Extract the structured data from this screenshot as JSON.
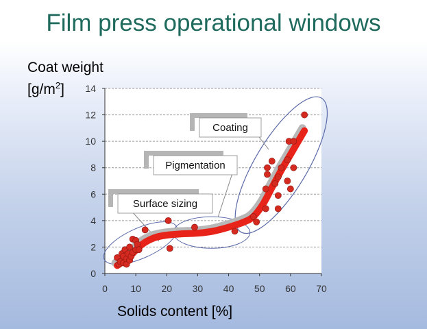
{
  "slide": {
    "title": "Film press operational windows"
  },
  "chart_data": {
    "type": "scatter",
    "title": "Film press operational windows",
    "xlabel": "Solids content  [%]",
    "ylabel_main": "Coat weight",
    "ylabel_unit_pre": "[g/m",
    "ylabel_unit_sup": "2",
    "ylabel_unit_post": "]",
    "xlim": [
      0,
      70
    ],
    "ylim": [
      0,
      14
    ],
    "xticks": [
      0,
      10,
      20,
      30,
      40,
      50,
      60,
      70
    ],
    "yticks": [
      0,
      2,
      4,
      6,
      8,
      10,
      12,
      14
    ],
    "grid": "horizontal dashed",
    "colors": {
      "points": "#d42a1f",
      "trend": "#e8241a",
      "trend_shadow": "#b8b8b8",
      "regions": "#5a6aa8"
    },
    "series": [
      {
        "points": [
          [
            4,
            1.2
          ],
          [
            4.5,
            0.7
          ],
          [
            5,
            0.9
          ],
          [
            5.5,
            1.5
          ],
          [
            6,
            0.8
          ],
          [
            6,
            1.3
          ],
          [
            6.5,
            1.8
          ],
          [
            7,
            1.1
          ],
          [
            7,
            0.7
          ],
          [
            7.5,
            1.5
          ],
          [
            8,
            2.0
          ],
          [
            8,
            1.0
          ],
          [
            8.5,
            1.3
          ],
          [
            9,
            2.6
          ],
          [
            9,
            1.6
          ],
          [
            10,
            2.5
          ],
          [
            10,
            1.8
          ],
          [
            10.5,
            2.2
          ],
          [
            11,
            1.8
          ],
          [
            13,
            3.3
          ],
          [
            20.5,
            4.0
          ],
          [
            21,
            1.9
          ],
          [
            29,
            3.5
          ],
          [
            42,
            3.2
          ],
          [
            48,
            4.3
          ],
          [
            49,
            3.9
          ],
          [
            52,
            4.9
          ],
          [
            52,
            6.4
          ],
          [
            52.5,
            7.5
          ],
          [
            52.5,
            8.0
          ],
          [
            54,
            8.5
          ],
          [
            55,
            6.8
          ],
          [
            56,
            4.9
          ],
          [
            56,
            5.9
          ],
          [
            56,
            7.3
          ],
          [
            57,
            8.0
          ],
          [
            59,
            7.0
          ],
          [
            59,
            8.6
          ],
          [
            59.5,
            10.0
          ],
          [
            60,
            6.4
          ],
          [
            61,
            10.0
          ],
          [
            61,
            8.0
          ],
          [
            64.5,
            12.0
          ]
        ]
      }
    ],
    "trend_curve": [
      [
        4,
        0.6
      ],
      [
        8,
        1.3
      ],
      [
        12,
        2.2
      ],
      [
        16,
        2.7
      ],
      [
        20,
        2.9
      ],
      [
        25,
        3.0
      ],
      [
        30,
        3.05
      ],
      [
        35,
        3.2
      ],
      [
        40,
        3.5
      ],
      [
        45,
        3.9
      ],
      [
        48,
        4.3
      ],
      [
        51,
        5.2
      ],
      [
        54,
        6.5
      ],
      [
        57,
        7.8
      ],
      [
        60,
        9.0
      ],
      [
        64.5,
        10.8
      ]
    ],
    "annotations": [
      {
        "label": "Surface sizing",
        "x": 11,
        "y": 3
      },
      {
        "label": "Pigmentation",
        "x": 36,
        "y": 3
      },
      {
        "label": "Coating",
        "x": 57,
        "y": 8
      }
    ]
  }
}
